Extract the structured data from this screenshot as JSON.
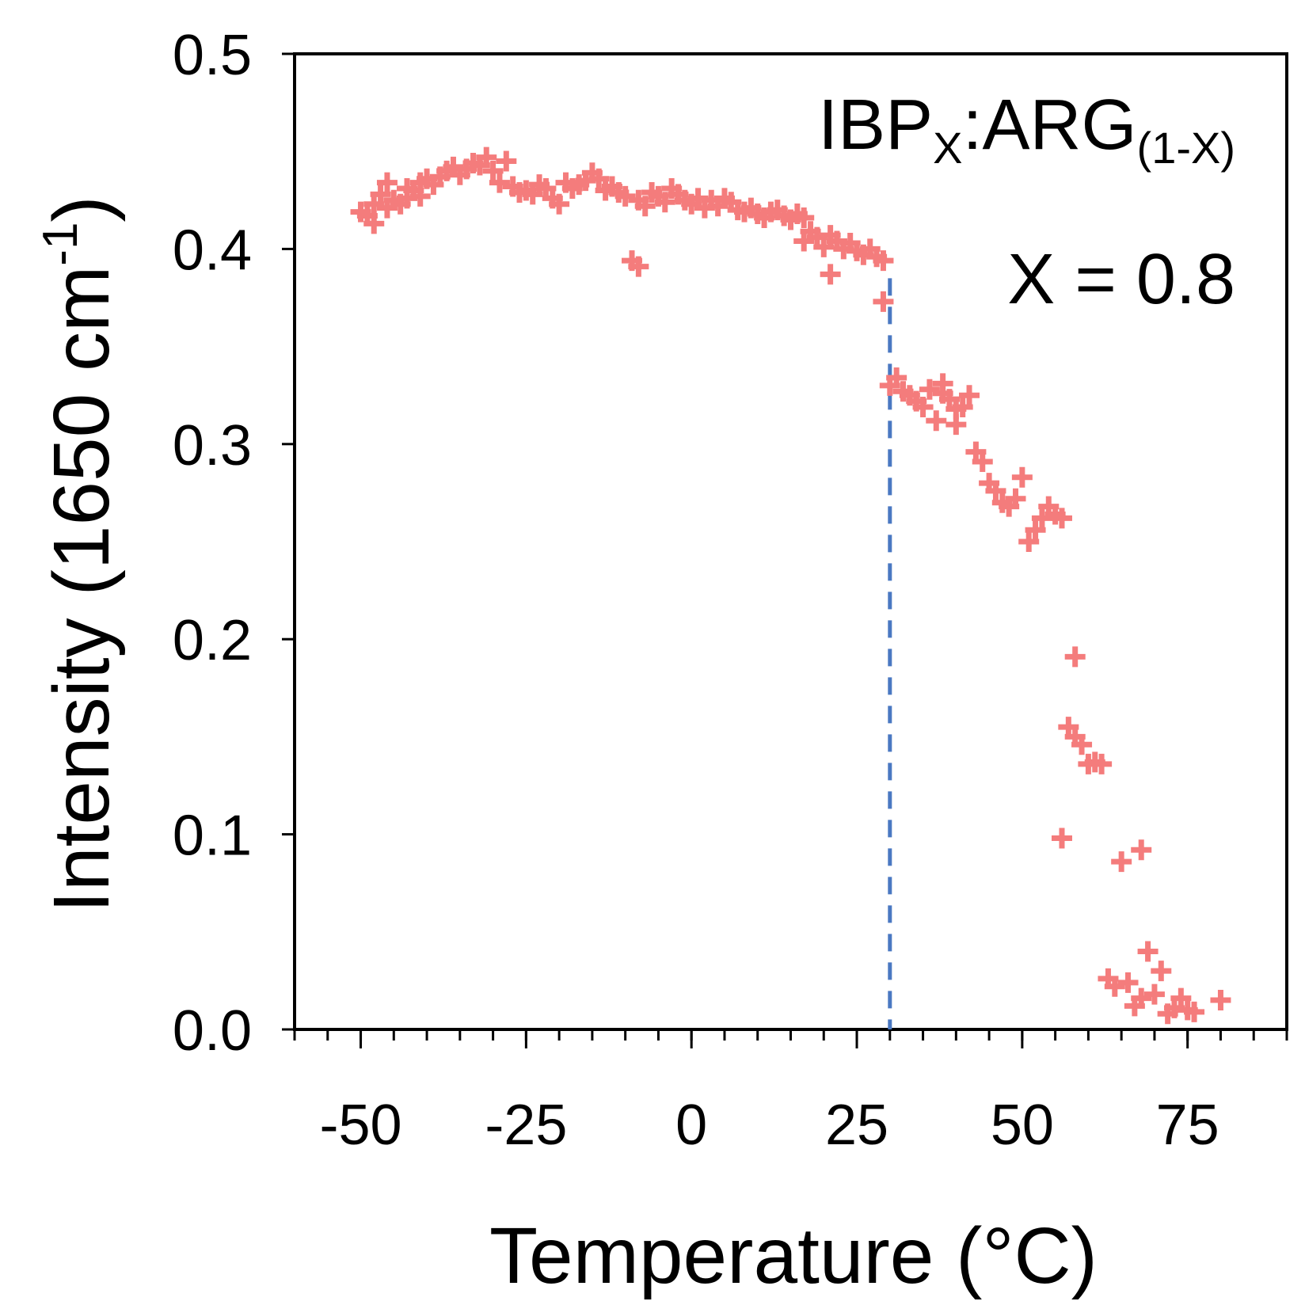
{
  "chart_data": {
    "type": "scatter",
    "xlabel": "Temperature (°C)",
    "ylabel_main": "Intensity (1650 cm",
    "ylabel_sup": "-1",
    "ylabel_close": ")",
    "xlim": [
      -60,
      90
    ],
    "ylim": [
      0.0,
      0.5
    ],
    "xticks": [
      -50,
      -25,
      0,
      25,
      50,
      75
    ],
    "xtick_labels": [
      "-50",
      "-25",
      "0",
      "25",
      "50",
      "75"
    ],
    "yticks": [
      0.0,
      0.1,
      0.2,
      0.3,
      0.4,
      0.5
    ],
    "ytick_labels": [
      "0.0",
      "0.1",
      "0.2",
      "0.3",
      "0.4",
      "0.5"
    ],
    "grid": false,
    "marker": "+",
    "marker_color": "#f47c7c",
    "reference_line": {
      "x": 30,
      "y_top": 0.385,
      "style": "dashed",
      "color": "#4a78c2"
    },
    "annotations": {
      "formula": {
        "base1": "IBP",
        "sub1": "X",
        "mid": ":ARG",
        "sub2": "(1-X)"
      },
      "composition": "X = 0.8"
    },
    "points": [
      [
        -50,
        0.419
      ],
      [
        -49,
        0.417
      ],
      [
        -48,
        0.413
      ],
      [
        -48,
        0.423
      ],
      [
        -47,
        0.428
      ],
      [
        -46,
        0.434
      ],
      [
        -46,
        0.421
      ],
      [
        -45,
        0.425
      ],
      [
        -44,
        0.423
      ],
      [
        -43,
        0.426
      ],
      [
        -43,
        0.431
      ],
      [
        -42,
        0.43
      ],
      [
        -41,
        0.427
      ],
      [
        -41,
        0.434
      ],
      [
        -40,
        0.436
      ],
      [
        -39,
        0.433
      ],
      [
        -38,
        0.437
      ],
      [
        -37,
        0.44
      ],
      [
        -36,
        0.442
      ],
      [
        -35,
        0.438
      ],
      [
        -34,
        0.441
      ],
      [
        -33,
        0.444
      ],
      [
        -32,
        0.443
      ],
      [
        -31,
        0.447
      ],
      [
        -30,
        0.44
      ],
      [
        -29,
        0.434
      ],
      [
        -28,
        0.445
      ],
      [
        -27,
        0.432
      ],
      [
        -26,
        0.429
      ],
      [
        -25,
        0.43
      ],
      [
        -24,
        0.428
      ],
      [
        -23,
        0.433
      ],
      [
        -22,
        0.431
      ],
      [
        -21,
        0.426
      ],
      [
        -20,
        0.423
      ],
      [
        -19,
        0.434
      ],
      [
        -18,
        0.431
      ],
      [
        -17,
        0.433
      ],
      [
        -16,
        0.435
      ],
      [
        -15,
        0.439
      ],
      [
        -14,
        0.436
      ],
      [
        -13,
        0.43
      ],
      [
        -12,
        0.432
      ],
      [
        -11,
        0.429
      ],
      [
        -10,
        0.427
      ],
      [
        -9,
        0.394
      ],
      [
        -8,
        0.391
      ],
      [
        -8,
        0.425
      ],
      [
        -7,
        0.422
      ],
      [
        -6,
        0.429
      ],
      [
        -5,
        0.427
      ],
      [
        -4,
        0.424
      ],
      [
        -3,
        0.431
      ],
      [
        -2,
        0.428
      ],
      [
        -1,
        0.425
      ],
      [
        0,
        0.423
      ],
      [
        1,
        0.426
      ],
      [
        2,
        0.421
      ],
      [
        3,
        0.425
      ],
      [
        4,
        0.422
      ],
      [
        5,
        0.426
      ],
      [
        6,
        0.424
      ],
      [
        7,
        0.42
      ],
      [
        8,
        0.419
      ],
      [
        9,
        0.421
      ],
      [
        10,
        0.418
      ],
      [
        11,
        0.416
      ],
      [
        12,
        0.419
      ],
      [
        13,
        0.42
      ],
      [
        14,
        0.417
      ],
      [
        15,
        0.415
      ],
      [
        16,
        0.418
      ],
      [
        17,
        0.416
      ],
      [
        17,
        0.404
      ],
      [
        18,
        0.409
      ],
      [
        19,
        0.406
      ],
      [
        20,
        0.401
      ],
      [
        21,
        0.387
      ],
      [
        21,
        0.407
      ],
      [
        22,
        0.404
      ],
      [
        23,
        0.4
      ],
      [
        24,
        0.403
      ],
      [
        25,
        0.399
      ],
      [
        26,
        0.397
      ],
      [
        27,
        0.4
      ],
      [
        28,
        0.396
      ],
      [
        29,
        0.394
      ],
      [
        29,
        0.373
      ],
      [
        30,
        0.33
      ],
      [
        31,
        0.334
      ],
      [
        32,
        0.327
      ],
      [
        33,
        0.325
      ],
      [
        34,
        0.322
      ],
      [
        35,
        0.319
      ],
      [
        36,
        0.328
      ],
      [
        37,
        0.312
      ],
      [
        38,
        0.326
      ],
      [
        38,
        0.331
      ],
      [
        39,
        0.323
      ],
      [
        40,
        0.318
      ],
      [
        40,
        0.31
      ],
      [
        41,
        0.319
      ],
      [
        42,
        0.325
      ],
      [
        43,
        0.296
      ],
      [
        44,
        0.291
      ],
      [
        45,
        0.28
      ],
      [
        46,
        0.276
      ],
      [
        47,
        0.27
      ],
      [
        48,
        0.268
      ],
      [
        49,
        0.272
      ],
      [
        50,
        0.283
      ],
      [
        51,
        0.25
      ],
      [
        52,
        0.256
      ],
      [
        53,
        0.262
      ],
      [
        54,
        0.268
      ],
      [
        55,
        0.264
      ],
      [
        56,
        0.262
      ],
      [
        56,
        0.098
      ],
      [
        57,
        0.155
      ],
      [
        58,
        0.191
      ],
      [
        58,
        0.15
      ],
      [
        59,
        0.146
      ],
      [
        60,
        0.136
      ],
      [
        61,
        0.137
      ],
      [
        62,
        0.136
      ],
      [
        63,
        0.026
      ],
      [
        64,
        0.022
      ],
      [
        65,
        0.086
      ],
      [
        66,
        0.024
      ],
      [
        67,
        0.012
      ],
      [
        68,
        0.092
      ],
      [
        68,
        0.016
      ],
      [
        69,
        0.04
      ],
      [
        70,
        0.018
      ],
      [
        71,
        0.03
      ],
      [
        72,
        0.008
      ],
      [
        73,
        0.011
      ],
      [
        74,
        0.016
      ],
      [
        75,
        0.01
      ],
      [
        76,
        0.009
      ],
      [
        80,
        0.015
      ]
    ]
  }
}
